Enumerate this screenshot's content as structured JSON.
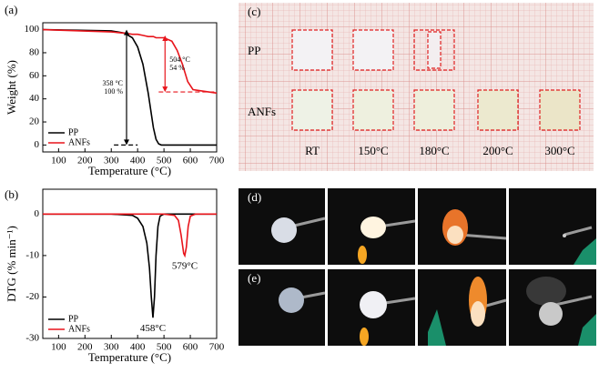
{
  "chart_data": [
    {
      "type": "line",
      "panel_label": "(a)",
      "x_label": "Temperature (°C)",
      "y_label": "Weight (%)",
      "x": [
        40,
        300,
        350,
        380,
        400,
        420,
        440,
        460,
        470,
        480,
        490,
        500,
        530,
        550,
        570,
        590,
        610,
        640,
        700
      ],
      "series": [
        {
          "name": "PP",
          "color": "#000000",
          "values": [
            100,
            99,
            97,
            93,
            85,
            70,
            45,
            15,
            5,
            1,
            0,
            0,
            0,
            0,
            0,
            0,
            0,
            0,
            0
          ]
        },
        {
          "name": "ANFs",
          "color": "#e8141b",
          "values": [
            100,
            98,
            97,
            96,
            96,
            95,
            94,
            94,
            93,
            93,
            93,
            93,
            90,
            82,
            70,
            55,
            48,
            47,
            45
          ]
        }
      ],
      "xlim": [
        40,
        700
      ],
      "xticks": [
        100,
        200,
        300,
        400,
        500,
        600,
        700
      ],
      "ylim": [
        -6,
        106
      ],
      "yticks": [
        0,
        20,
        40,
        60,
        80,
        100
      ],
      "legend": "lower left",
      "dashed_lines": [
        {
          "y": 0,
          "x": [
            310,
            400
          ],
          "color": "#000000"
        },
        {
          "y": 46,
          "x": [
            480,
            700
          ],
          "color": "#e8141b"
        }
      ],
      "arrows": [
        {
          "lines": [
            "358 °C",
            "100 %"
          ],
          "x": 358,
          "y": [
            100,
            0
          ],
          "color": "#000000",
          "side": "left"
        },
        {
          "lines": [
            "504 °C",
            "54 %"
          ],
          "x": 504,
          "y": [
            95,
            46
          ],
          "color": "#e8141b",
          "side": "right"
        }
      ]
    },
    {
      "type": "line",
      "panel_label": "(b)",
      "x_label": "Temperature (°C)",
      "y_label": "DTG (% min⁻¹)",
      "x": [
        40,
        300,
        380,
        400,
        420,
        435,
        445,
        452,
        458,
        464,
        470,
        477,
        485,
        500,
        540,
        555,
        565,
        575,
        579,
        585,
        592,
        600,
        620,
        700
      ],
      "series": [
        {
          "name": "PP",
          "color": "#000000",
          "values": [
            0,
            0,
            -0.3,
            -1,
            -3,
            -7,
            -13,
            -20,
            -25,
            -20,
            -10,
            -3,
            -0.5,
            0,
            0,
            0,
            0,
            0,
            0,
            0,
            0,
            0,
            0,
            0
          ]
        },
        {
          "name": "ANFs",
          "color": "#e8141b",
          "values": [
            0,
            0,
            0,
            0,
            0,
            0,
            0,
            0,
            0,
            0,
            0,
            0,
            0,
            0,
            -0.3,
            -1.5,
            -5,
            -9.5,
            -10,
            -8,
            -3,
            -0.5,
            0,
            0
          ]
        }
      ],
      "xlim": [
        40,
        700
      ],
      "xticks": [
        100,
        200,
        300,
        400,
        500,
        600,
        700
      ],
      "ylim": [
        -30,
        6
      ],
      "yticks": [
        0,
        -10,
        -20,
        -30
      ],
      "legend": "lower left",
      "peaks": [
        {
          "text": "458°C",
          "x": 458,
          "y": -25
        },
        {
          "text": "579°C",
          "x": 579,
          "y": -10
        }
      ]
    }
  ],
  "photos": {
    "c": {
      "label": "(c)",
      "rows": [
        "PP",
        "ANFs"
      ],
      "temps": [
        "RT",
        "150°C",
        "180°C",
        "200°C",
        "300°C"
      ]
    },
    "d": "(d)",
    "e": "(e)"
  }
}
